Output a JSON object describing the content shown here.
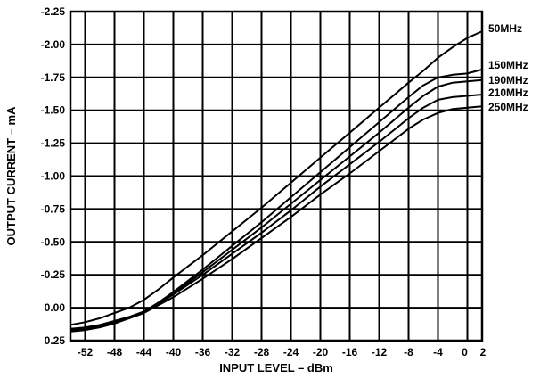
{
  "chart_data": {
    "type": "line",
    "title": "",
    "xlabel": "INPUT LEVEL – dBm",
    "ylabel": "OUTPUT CURRENT – mA",
    "xlim": [
      -54,
      2
    ],
    "ylim": [
      0.25,
      -2.25
    ],
    "x_ticks": [
      -52,
      -48,
      -44,
      -40,
      -36,
      -32,
      -28,
      -24,
      -20,
      -16,
      -12,
      -8,
      -4,
      0,
      2
    ],
    "y_ticks": [
      -2.25,
      -2.0,
      -1.75,
      -1.5,
      -1.25,
      -1.0,
      -0.75,
      -0.5,
      -0.25,
      0.0,
      0.25
    ],
    "y_tick_labels": [
      "-2.25",
      "-2.00",
      "-1.75",
      "-1.50",
      "-1.25",
      "-1.00",
      "-0.75",
      "-0.50",
      "-0.25",
      "0.00",
      "0.25"
    ],
    "grid": true,
    "legend": "right",
    "series": [
      {
        "name": "50MHz",
        "x": [
          -54,
          -52,
          -50,
          -48,
          -46,
          -44,
          -42,
          -40,
          -36,
          -32,
          -28,
          -24,
          -20,
          -16,
          -12,
          -8,
          -6,
          -4,
          -2,
          0,
          2
        ],
        "y": [
          0.13,
          0.11,
          0.08,
          0.04,
          0.0,
          -0.06,
          -0.14,
          -0.23,
          -0.4,
          -0.58,
          -0.76,
          -0.95,
          -1.14,
          -1.33,
          -1.52,
          -1.71,
          -1.8,
          -1.9,
          -1.98,
          -2.05,
          -2.1
        ]
      },
      {
        "name": "150MHz",
        "x": [
          -54,
          -52,
          -50,
          -48,
          -46,
          -44,
          -42,
          -40,
          -36,
          -32,
          -28,
          -24,
          -20,
          -16,
          -12,
          -8,
          -6,
          -4,
          -2,
          0,
          2
        ],
        "y": [
          0.16,
          0.15,
          0.13,
          0.1,
          0.07,
          0.03,
          -0.04,
          -0.12,
          -0.29,
          -0.47,
          -0.65,
          -0.84,
          -1.03,
          -1.22,
          -1.41,
          -1.6,
          -1.69,
          -1.75,
          -1.77,
          -1.78,
          -1.81
        ]
      },
      {
        "name": "190MHz",
        "x": [
          -54,
          -52,
          -50,
          -48,
          -46,
          -44,
          -42,
          -40,
          -36,
          -32,
          -28,
          -24,
          -20,
          -16,
          -12,
          -8,
          -6,
          -4,
          -2,
          0,
          2
        ],
        "y": [
          0.17,
          0.16,
          0.14,
          0.11,
          0.07,
          0.03,
          -0.04,
          -0.11,
          -0.27,
          -0.44,
          -0.61,
          -0.79,
          -0.97,
          -1.15,
          -1.33,
          -1.52,
          -1.61,
          -1.68,
          -1.71,
          -1.72,
          -1.73
        ]
      },
      {
        "name": "210MHz",
        "x": [
          -54,
          -52,
          -50,
          -48,
          -46,
          -44,
          -42,
          -40,
          -36,
          -32,
          -28,
          -24,
          -20,
          -16,
          -12,
          -8,
          -6,
          -4,
          -2,
          0,
          2
        ],
        "y": [
          0.17,
          0.16,
          0.14,
          0.11,
          0.08,
          0.03,
          -0.03,
          -0.1,
          -0.25,
          -0.41,
          -0.57,
          -0.74,
          -0.92,
          -1.09,
          -1.26,
          -1.44,
          -1.52,
          -1.58,
          -1.6,
          -1.61,
          -1.62
        ]
      },
      {
        "name": "250MHz",
        "x": [
          -54,
          -52,
          -50,
          -48,
          -46,
          -44,
          -42,
          -40,
          -36,
          -32,
          -28,
          -24,
          -20,
          -16,
          -12,
          -8,
          -6,
          -4,
          -2,
          0,
          2
        ],
        "y": [
          0.18,
          0.17,
          0.15,
          0.12,
          0.08,
          0.04,
          -0.02,
          -0.08,
          -0.22,
          -0.37,
          -0.53,
          -0.69,
          -0.86,
          -1.02,
          -1.19,
          -1.36,
          -1.43,
          -1.48,
          -1.51,
          -1.52,
          -1.53
        ]
      }
    ]
  }
}
